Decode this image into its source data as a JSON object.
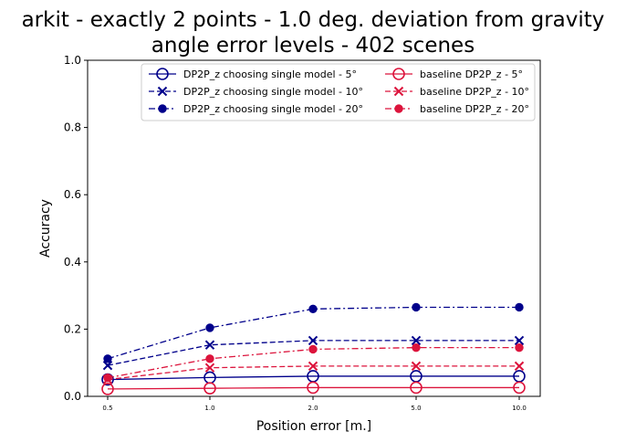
{
  "chart_data": {
    "type": "line",
    "title_line1": "arkit - exactly 2 points - 1.0 deg. deviation from gravity",
    "title_line2": "angle error levels - 402 scenes",
    "xlabel": "Position error [m.]",
    "ylabel": "Accuracy",
    "categories": [
      "0.5",
      "1.0",
      "2.0",
      "5.0",
      "10.0"
    ],
    "yticks": [
      "0.0",
      "0.2",
      "0.4",
      "0.6",
      "0.8",
      "1.0"
    ],
    "ylim": [
      0,
      1
    ],
    "legend_position": "top-right",
    "grid": false,
    "series": [
      {
        "name": "DP2P_z choosing single model - 5°",
        "color": "#00008b",
        "dash": "solid",
        "marker": "circle-open",
        "values": [
          0.05,
          0.056,
          0.06,
          0.06,
          0.06
        ]
      },
      {
        "name": "DP2P_z choosing single model - 10°",
        "color": "#00008b",
        "dash": "dashed",
        "marker": "x",
        "values": [
          0.092,
          0.153,
          0.166,
          0.166,
          0.166
        ]
      },
      {
        "name": "DP2P_z choosing single model - 20°",
        "color": "#00008b",
        "dash": "dashdot",
        "marker": "dot",
        "values": [
          0.112,
          0.204,
          0.26,
          0.265,
          0.265
        ]
      },
      {
        "name": "baseline DP2P_z - 5°",
        "color": "#dc143c",
        "dash": "solid",
        "marker": "circle-open",
        "values": [
          0.022,
          0.024,
          0.026,
          0.026,
          0.026
        ]
      },
      {
        "name": "baseline DP2P_z - 10°",
        "color": "#dc143c",
        "dash": "dashed",
        "marker": "x",
        "values": [
          0.05,
          0.085,
          0.09,
          0.09,
          0.09
        ]
      },
      {
        "name": "baseline DP2P_z - 20°",
        "color": "#dc143c",
        "dash": "dashdot",
        "marker": "dot",
        "values": [
          0.055,
          0.112,
          0.14,
          0.145,
          0.145
        ]
      }
    ]
  }
}
